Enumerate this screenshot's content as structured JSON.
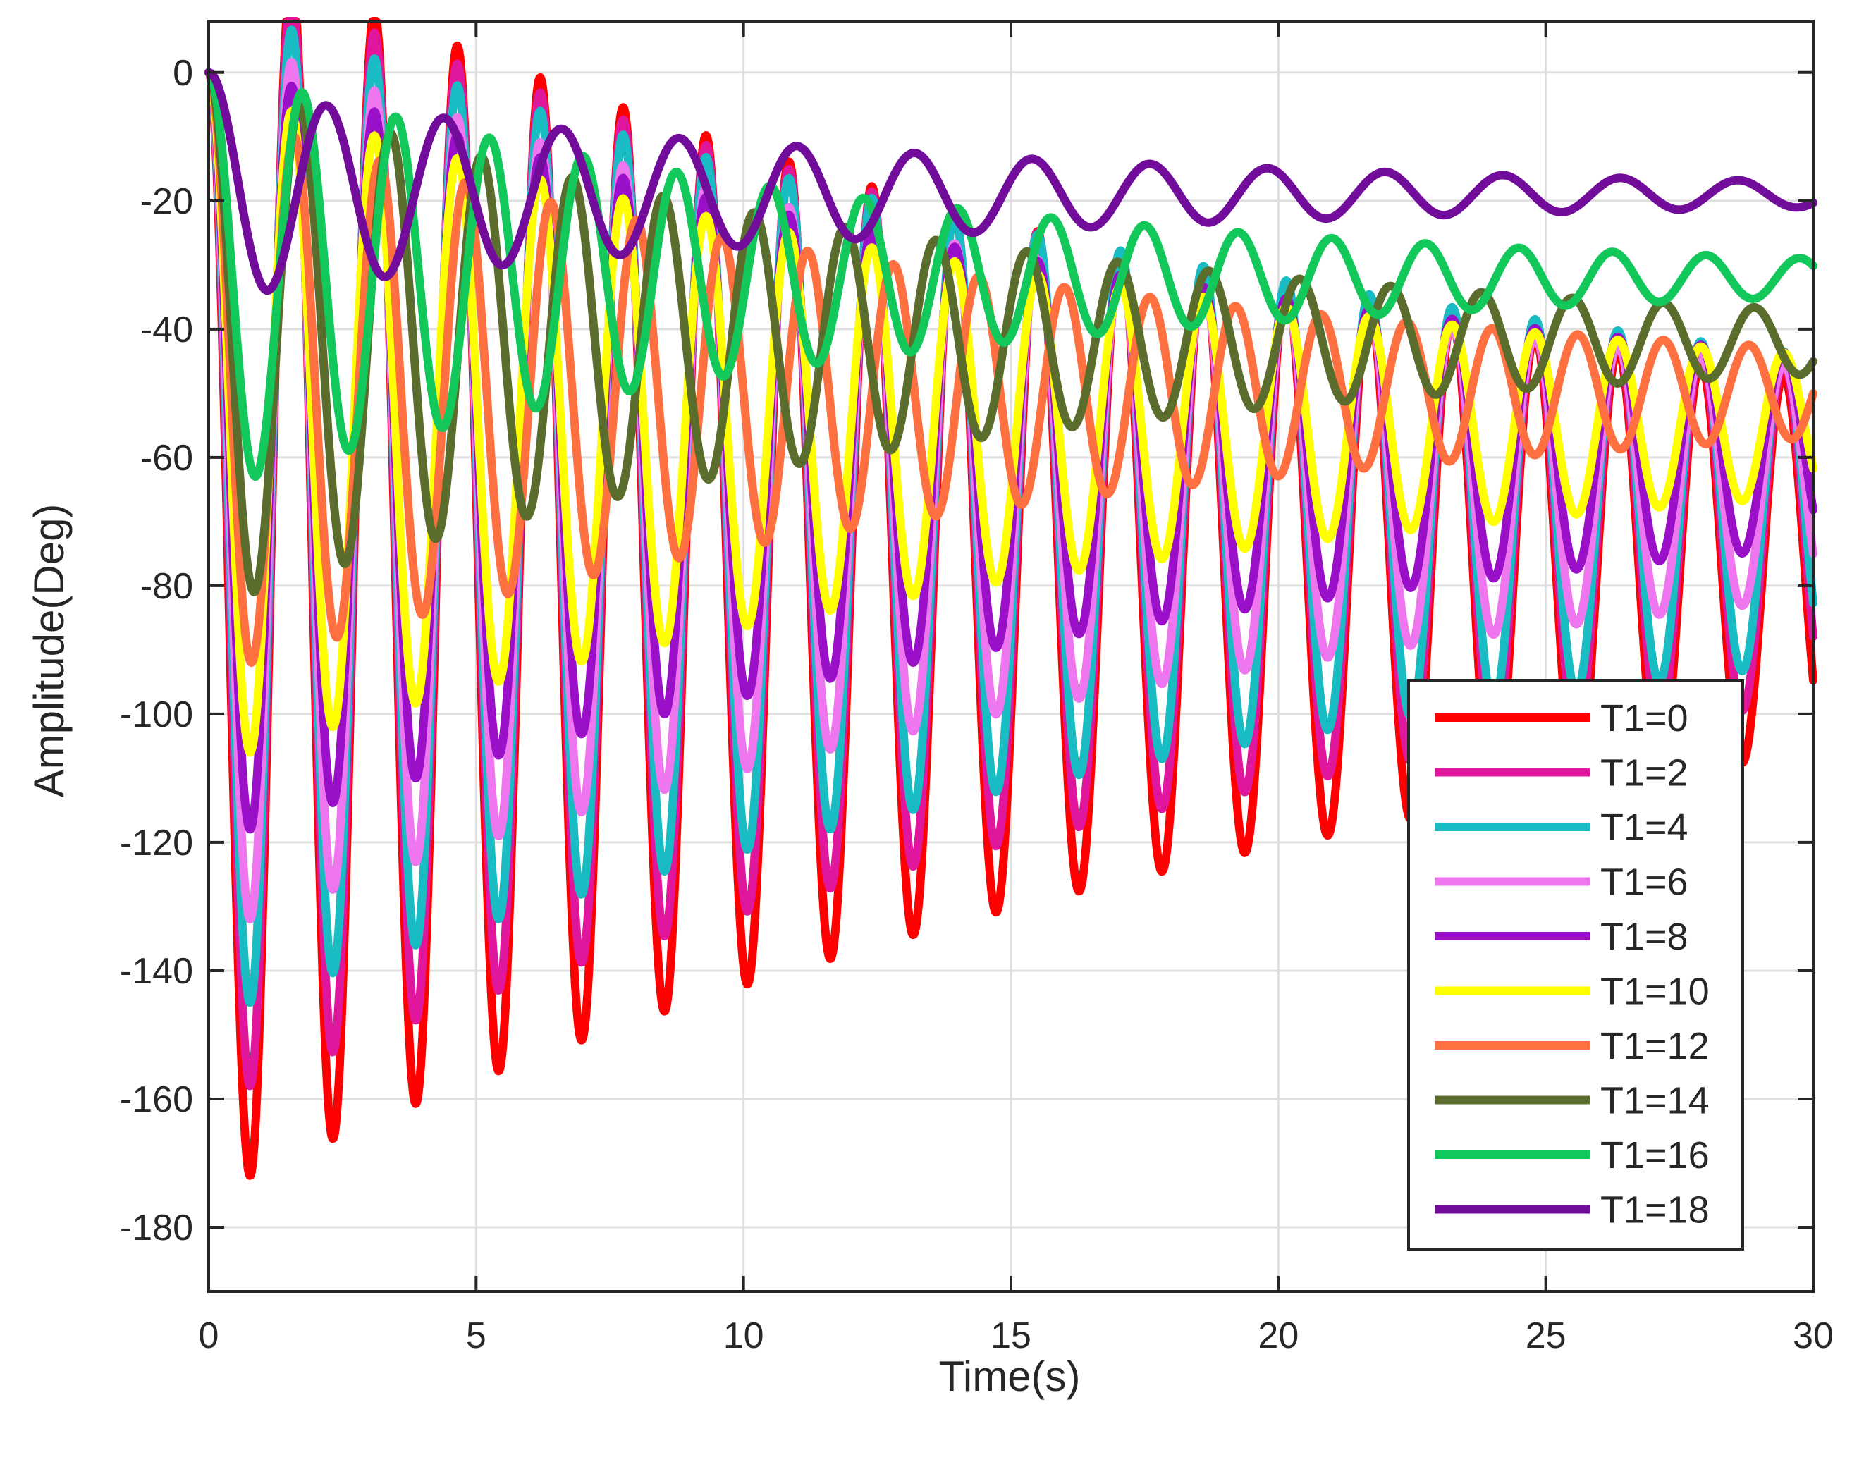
{
  "chart_data": {
    "type": "line",
    "title": "",
    "xlabel": "Time(s)",
    "ylabel": "Amplitude(Deg)",
    "xlim": [
      0,
      30
    ],
    "ylim": [
      -190,
      8
    ],
    "xticks": [
      0,
      5,
      10,
      15,
      20,
      25,
      30
    ],
    "yticks": [
      0,
      -20,
      -40,
      -60,
      -80,
      -100,
      -120,
      -140,
      -160,
      -180
    ],
    "xtick_labels": [
      "0",
      "5",
      "10",
      "15",
      "20",
      "25",
      "30"
    ],
    "ytick_labels": [
      "0",
      "-20",
      "-40",
      "-60",
      "-80",
      "-100",
      "-120",
      "-140",
      "-160",
      "-180"
    ],
    "grid": true,
    "legend_position": "bottom-right",
    "series": [
      {
        "name": "T1=0",
        "color": "#ff0000",
        "steady_state": -77,
        "first_trough": -172,
        "final_trough": -106,
        "period_s": 1.55
      },
      {
        "name": "T1=2",
        "color": "#e0169c",
        "steady_state": -72,
        "first_trough": -158,
        "final_trough": -98,
        "period_s": 1.55
      },
      {
        "name": "T1=4",
        "color": "#19bcc2",
        "steady_state": -68,
        "first_trough": -145,
        "final_trough": -92,
        "period_s": 1.55
      },
      {
        "name": "T1=6",
        "color": "#ee77f0",
        "steady_state": -64,
        "first_trough": -132,
        "final_trough": -82,
        "period_s": 1.55
      },
      {
        "name": "T1=8",
        "color": "#9a10c8",
        "steady_state": -59,
        "first_trough": -118,
        "final_trough": -74,
        "period_s": 1.55
      },
      {
        "name": "T1=10",
        "color": "#ffff00",
        "steady_state": -55,
        "first_trough": -106,
        "final_trough": -66,
        "period_s": 1.55
      },
      {
        "name": "T1=12",
        "color": "#ff7040",
        "steady_state": -50,
        "first_trough": -92,
        "final_trough": -57,
        "period_s": 1.6
      },
      {
        "name": "T1=14",
        "color": "#5b6d2c",
        "steady_state": -42,
        "first_trough": -81,
        "final_trough": -47,
        "period_s": 1.7
      },
      {
        "name": "T1=16",
        "color": "#12c85a",
        "steady_state": -32,
        "first_trough": -63,
        "final_trough": -35,
        "period_s": 1.75
      },
      {
        "name": "T1=18",
        "color": "#720c9a",
        "steady_state": -19,
        "first_trough": -34,
        "final_trough": -21,
        "period_s": 2.2
      }
    ]
  }
}
